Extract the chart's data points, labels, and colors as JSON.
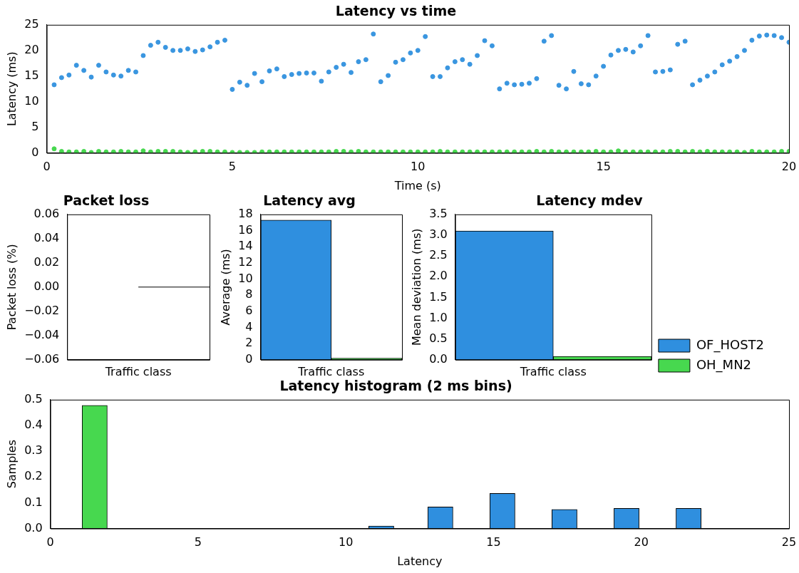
{
  "chart_data": [
    {
      "type": "scatter",
      "title": "Latency vs time",
      "xlabel": "Time (s)",
      "ylabel": "Latency (ms)",
      "xlim": [
        0,
        20
      ],
      "xticks": [
        0,
        5,
        10,
        15,
        20
      ],
      "ylim": [
        0,
        25
      ],
      "yticks": [
        0,
        5,
        10,
        15,
        20,
        25
      ],
      "marker": "circle",
      "legend": false,
      "x": [
        0.2,
        0.4,
        0.6,
        0.8,
        1.0,
        1.2,
        1.4,
        1.6,
        1.8,
        2.0,
        2.2,
        2.4,
        2.6,
        2.8,
        3.0,
        3.2,
        3.4,
        3.6,
        3.8,
        4.0,
        4.2,
        4.4,
        4.6,
        4.8,
        5.0,
        5.2,
        5.4,
        5.6,
        5.8,
        6.0,
        6.2,
        6.4,
        6.6,
        6.8,
        7.0,
        7.2,
        7.4,
        7.6,
        7.8,
        8.0,
        8.2,
        8.4,
        8.6,
        8.8,
        9.0,
        9.2,
        9.4,
        9.6,
        9.8,
        10.0,
        10.2,
        10.4,
        10.6,
        10.8,
        11.0,
        11.2,
        11.4,
        11.6,
        11.8,
        12.0,
        12.2,
        12.4,
        12.6,
        12.8,
        13.0,
        13.2,
        13.4,
        13.6,
        13.8,
        14.0,
        14.2,
        14.4,
        14.6,
        14.8,
        15.0,
        15.2,
        15.4,
        15.6,
        15.8,
        16.0,
        16.2,
        16.4,
        16.6,
        16.8,
        17.0,
        17.2,
        17.4,
        17.6,
        17.8,
        18.0,
        18.2,
        18.4,
        18.6,
        18.8,
        19.0,
        19.2,
        19.4,
        19.6,
        19.8,
        20.0
      ],
      "series": [
        {
          "color": "#3a96e0",
          "values": [
            13.3,
            14.7,
            15.2,
            17.1,
            16.1,
            14.8,
            17.1,
            15.8,
            15.2,
            15.0,
            16.1,
            15.8,
            19.0,
            21.0,
            21.6,
            20.6,
            20.0,
            20.0,
            20.3,
            19.8,
            20.1,
            20.7,
            21.6,
            22.0,
            12.4,
            13.8,
            13.2,
            15.5,
            13.9,
            16.0,
            16.4,
            14.9,
            15.3,
            15.5,
            15.6,
            15.6,
            14.0,
            15.8,
            16.7,
            17.3,
            15.7,
            17.8,
            18.2,
            23.2,
            13.9,
            15.1,
            17.7,
            18.2,
            19.5,
            20.0,
            22.7,
            14.9,
            14.9,
            16.6,
            17.8,
            18.2,
            17.3,
            19.0,
            21.9,
            20.9,
            12.5,
            13.6,
            13.3,
            13.4,
            13.6,
            14.5,
            21.8,
            22.9,
            13.2,
            12.5,
            15.9,
            13.5,
            13.3,
            15.0,
            16.9,
            19.1,
            20.0,
            20.2,
            19.7,
            20.9,
            22.9,
            15.8,
            15.9,
            16.2,
            21.2,
            21.8,
            13.3,
            14.2,
            15.0,
            15.8,
            17.2,
            17.9,
            18.8,
            20.0,
            22.0,
            22.8,
            23.0,
            22.9,
            22.5,
            21.6
          ]
        },
        {
          "color": "#47d84f",
          "values": [
            0.8,
            0.3,
            0.2,
            0.2,
            0.3,
            0.1,
            0.3,
            0.2,
            0.2,
            0.3,
            0.2,
            0.2,
            0.4,
            0.2,
            0.3,
            0.3,
            0.3,
            0.2,
            0.1,
            0.2,
            0.3,
            0.3,
            0.2,
            0.2,
            0.1,
            0.1,
            0.1,
            0.1,
            0.2,
            0.2,
            0.2,
            0.2,
            0.2,
            0.2,
            0.2,
            0.2,
            0.2,
            0.2,
            0.3,
            0.3,
            0.2,
            0.3,
            0.2,
            0.2,
            0.2,
            0.2,
            0.2,
            0.2,
            0.2,
            0.2,
            0.2,
            0.2,
            0.3,
            0.2,
            0.2,
            0.2,
            0.2,
            0.2,
            0.2,
            0.2,
            0.2,
            0.2,
            0.2,
            0.2,
            0.2,
            0.3,
            0.2,
            0.3,
            0.2,
            0.2,
            0.2,
            0.2,
            0.2,
            0.3,
            0.2,
            0.2,
            0.4,
            0.2,
            0.2,
            0.2,
            0.2,
            0.2,
            0.2,
            0.3,
            0.3,
            0.2,
            0.3,
            0.2,
            0.3,
            0.2,
            0.2,
            0.2,
            0.2,
            0.1,
            0.3,
            0.2,
            0.2,
            0.2,
            0.3,
            0.3
          ]
        }
      ]
    },
    {
      "type": "bar",
      "title": "Packet loss",
      "xlabel": "Traffic class",
      "ylabel": "Packet loss (%)",
      "categories": [
        null
      ],
      "ylim": [
        -0.06,
        0.06
      ],
      "yticks": [
        {
          "value": -0.06,
          "label": "−0.06"
        },
        {
          "value": -0.04,
          "label": "−0.04"
        },
        {
          "value": -0.02,
          "label": "−0.02"
        },
        {
          "value": 0,
          "label": "0.00"
        },
        {
          "value": 0.02,
          "label": "0.02"
        },
        {
          "value": 0.04,
          "label": "0.04"
        },
        {
          "value": 0.06,
          "label": "0.06"
        }
      ],
      "legend": false,
      "series": [
        {
          "color": "#2f8fdf",
          "values": [
            null
          ]
        },
        {
          "color": "#47d84f",
          "values": [
            0
          ]
        }
      ]
    },
    {
      "type": "bar",
      "title": "Latency avg",
      "xlabel": "Traffic class",
      "ylabel": "Average (ms)",
      "categories": [
        null
      ],
      "ylim": [
        0,
        18
      ],
      "yticks": [
        0,
        2,
        4,
        6,
        8,
        10,
        12,
        14,
        16,
        18
      ],
      "legend": false,
      "series": [
        {
          "color": "#2f8fdf",
          "values": [
            17.3
          ]
        },
        {
          "color": "#47d84f",
          "values": [
            0.2
          ]
        }
      ]
    },
    {
      "type": "bar",
      "title": "Latency mdev",
      "xlabel": "Traffic class",
      "ylabel": "Mean deviation (ms)",
      "categories": [
        null
      ],
      "ylim": [
        0,
        3.5
      ],
      "yticks": [
        {
          "value": 0,
          "label": "0.0"
        },
        {
          "value": 0.5,
          "label": "0.5"
        },
        {
          "value": 1,
          "label": "1.0"
        },
        {
          "value": 1.5,
          "label": "1.5"
        },
        {
          "value": 2,
          "label": "2.0"
        },
        {
          "value": 2.5,
          "label": "2.5"
        },
        {
          "value": 3,
          "label": "3.0"
        },
        {
          "value": 3.5,
          "label": "3.5"
        }
      ],
      "legend": "right",
      "series": [
        {
          "name": "OF_HOST2",
          "color": "#2f8fdf",
          "values": [
            3.1
          ]
        },
        {
          "name": "OH_MN2",
          "color": "#47d84f",
          "values": [
            0.08
          ]
        }
      ]
    },
    {
      "type": "bar",
      "title": "Latency histogram (2 ms bins)",
      "xlabel": "Latency",
      "ylabel": "Samples",
      "xlim": [
        0,
        25
      ],
      "xticks": [
        0,
        5,
        10,
        15,
        20,
        25
      ],
      "ylim": [
        0,
        0.5
      ],
      "yticks": [
        {
          "value": 0,
          "label": "0.0"
        },
        {
          "value": 0.1,
          "label": "0.1"
        },
        {
          "value": 0.2,
          "label": "0.2"
        },
        {
          "value": 0.3,
          "label": "0.3"
        },
        {
          "value": 0.4,
          "label": "0.4"
        },
        {
          "value": 0.5,
          "label": "0.5"
        }
      ],
      "legend": false,
      "series": [
        {
          "color": "#2f8fdf",
          "x": [
            11.2,
            13.2,
            15.3,
            17.4,
            19.5,
            21.6
          ],
          "values": [
            0.01,
            0.084,
            0.136,
            0.074,
            0.078,
            0.078
          ]
        },
        {
          "color": "#47d84f",
          "x": [
            1.5
          ],
          "values": [
            0.478
          ]
        }
      ]
    }
  ]
}
